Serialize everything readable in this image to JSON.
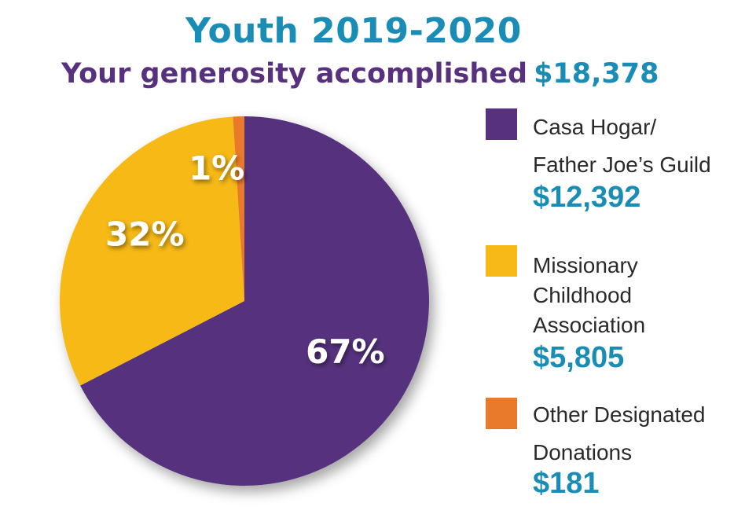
{
  "header": {
    "title": "Youth 2019-2020",
    "subtitle": "Your generosity accomplished",
    "total": "$18,378"
  },
  "legend": {
    "items": [
      {
        "line1": "Casa Hogar/",
        "line2": "Father Joe’s Guild",
        "line3": "",
        "amount": "$12,392"
      },
      {
        "line1": "Missionary",
        "line2": "Childhood",
        "line3": "Association",
        "amount": "$5,805"
      },
      {
        "line1": "Other Designated",
        "line2": "Donations",
        "line3": "",
        "amount": "$181"
      }
    ]
  },
  "chart_data": {
    "type": "pie",
    "title": "Youth 2019-2020",
    "subtitle": "Your generosity accomplished $18,378",
    "total": 18378,
    "slices": [
      {
        "name": "Casa Hogar/ Father Joe’s Guild",
        "value": 12392,
        "percent_label": "67%",
        "color": "#57307e"
      },
      {
        "name": "Missionary Childhood Association",
        "value": 5805,
        "percent_label": "32%",
        "color": "#f6b918"
      },
      {
        "name": "Other Designated Donations",
        "value": 181,
        "percent_label": "1%",
        "color": "#e97a2b"
      }
    ],
    "legend_position": "right"
  }
}
